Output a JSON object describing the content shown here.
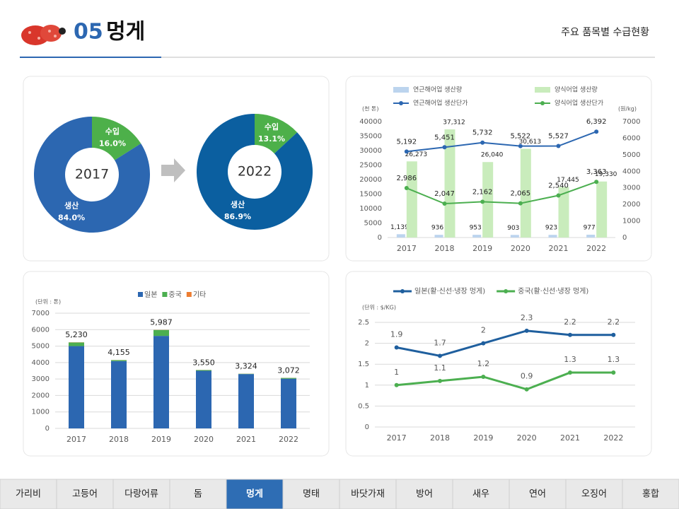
{
  "header": {
    "number": "05",
    "title": "멍게",
    "subtitle": "주요 품목별 수급현황"
  },
  "chart_data": [
    {
      "type": "pie",
      "center_label": "2017",
      "categories": [
        "수입",
        "생산"
      ],
      "values": [
        16.0,
        84.0
      ],
      "value_labels": [
        "16.0%",
        "84.0%"
      ],
      "colors": [
        "#4db04a",
        "#2c67b1"
      ]
    },
    {
      "type": "pie",
      "center_label": "2022",
      "categories": [
        "수입",
        "생산"
      ],
      "values": [
        13.1,
        86.9
      ],
      "value_labels": [
        "13.1%",
        "86.9%"
      ],
      "colors": [
        "#4db04a",
        "#0b5fa0"
      ]
    },
    {
      "type": "bar_line",
      "y_unit": "(천 톤)",
      "y2_unit": "(원/kg)",
      "categories": [
        "2017",
        "2018",
        "2019",
        "2020",
        "2021",
        "2022"
      ],
      "ylim": [
        0,
        40000
      ],
      "yticks": [
        0,
        5000,
        10000,
        15000,
        20000,
        25000,
        30000,
        35000,
        40000
      ],
      "y2lim": [
        0,
        7000
      ],
      "y2ticks": [
        0,
        1000,
        2000,
        3000,
        4000,
        5000,
        6000,
        7000
      ],
      "grid": false,
      "series": [
        {
          "name": "연근해어업 생산량",
          "kind": "bar",
          "color": "#bcd4ee",
          "values": [
            1139,
            936,
            953,
            903,
            923,
            977
          ],
          "value_labels": [
            "1,139",
            "936",
            "953",
            "903",
            "923",
            "977"
          ]
        },
        {
          "name": "양식어업 생산량",
          "kind": "bar",
          "color": "#c9ecbc",
          "values": [
            26273,
            37312,
            26040,
            30613,
            17445,
            19330
          ],
          "value_labels": [
            "26,273",
            "37,312",
            "26,040",
            "30,613",
            "17,445",
            "19,330"
          ]
        },
        {
          "name": "연근해어업 생산단가",
          "kind": "line",
          "axis": "y2",
          "color": "#2c67b1",
          "values": [
            5192,
            5451,
            5732,
            5522,
            5527,
            6392
          ],
          "value_labels": [
            "5,192",
            "5,451",
            "5,732",
            "5,522",
            "5,527",
            "6,392"
          ]
        },
        {
          "name": "양식어업 생산단가",
          "kind": "line",
          "axis": "y2",
          "color": "#4caf50",
          "values": [
            2986,
            2047,
            2162,
            2065,
            2540,
            3363
          ],
          "value_labels": [
            "2,986",
            "2,047",
            "2,162",
            "2,065",
            "2,540",
            "3,363"
          ]
        }
      ]
    },
    {
      "type": "stacked_bar",
      "y_unit": "(단위 : 톤)",
      "categories": [
        "2017",
        "2018",
        "2019",
        "2020",
        "2021",
        "2022"
      ],
      "ylim": [
        0,
        7000
      ],
      "yticks": [
        0,
        1000,
        2000,
        3000,
        4000,
        5000,
        6000,
        7000
      ],
      "grid": true,
      "series": [
        {
          "name": "일본",
          "color": "#2c67b1",
          "values": [
            5000,
            4090,
            5620,
            3500,
            3300,
            3020
          ]
        },
        {
          "name": "중국",
          "color": "#4caf50",
          "values": [
            220,
            60,
            360,
            45,
            20,
            47
          ]
        },
        {
          "name": "기타",
          "color": "#ed7d31",
          "values": [
            10,
            5,
            7,
            5,
            4,
            5
          ]
        }
      ],
      "totals": [
        5230,
        4155,
        5987,
        3550,
        3324,
        3072
      ],
      "total_labels": [
        "5,230",
        "4,155",
        "5,987",
        "3,550",
        "3,324",
        "3,072"
      ]
    },
    {
      "type": "line",
      "y_unit": "(단위 : $/KG)",
      "categories": [
        "2017",
        "2018",
        "2019",
        "2020",
        "2021",
        "2022"
      ],
      "ylim": [
        0,
        2.5
      ],
      "yticks": [
        0,
        0.5,
        1,
        1.5,
        2,
        2.5
      ],
      "grid": true,
      "series": [
        {
          "name": "일본(활·신선·냉장 멍게)",
          "color": "#1f5f9e",
          "values": [
            1.9,
            1.7,
            2,
            2.3,
            2.2,
            2.2
          ]
        },
        {
          "name": "중국(활·신선·냉장 멍게)",
          "color": "#4caf50",
          "values": [
            1,
            1.1,
            1.2,
            0.9,
            1.3,
            1.3
          ]
        }
      ]
    }
  ],
  "nav": {
    "tabs": [
      "가리비",
      "고등어",
      "다랑어류",
      "돔",
      "멍게",
      "명태",
      "바닷가재",
      "방어",
      "새우",
      "연어",
      "오징어",
      "홍합"
    ],
    "active": 4
  }
}
